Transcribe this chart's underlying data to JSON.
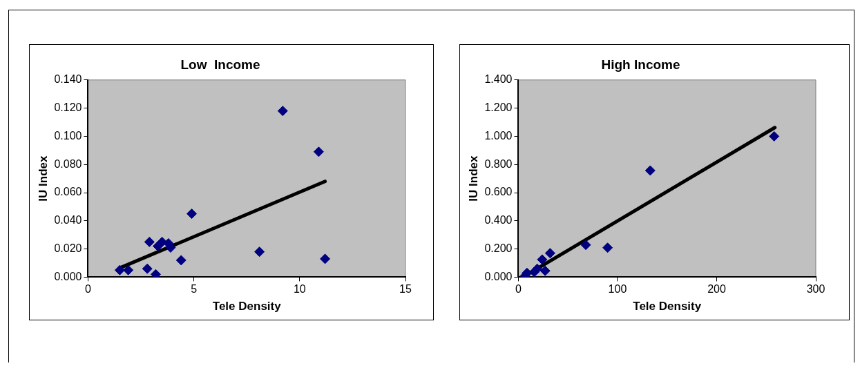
{
  "chart_data": [
    {
      "type": "scatter",
      "title": "Low  Income",
      "xlabel": "Tele Density",
      "ylabel": "IU Index",
      "xlim": [
        0,
        15
      ],
      "xticks": [
        0,
        5,
        10,
        15
      ],
      "ylim": [
        0,
        0.14
      ],
      "yticks": [
        {
          "value": 0,
          "label": "0.000"
        },
        {
          "value": 0.02,
          "label": "0.020"
        },
        {
          "value": 0.04,
          "label": "0.040"
        },
        {
          "value": 0.06,
          "label": "0.060"
        },
        {
          "value": 0.08,
          "label": "0.080"
        },
        {
          "value": 0.1,
          "label": "0.100"
        },
        {
          "value": 0.12,
          "label": "0.120"
        },
        {
          "value": 0.14,
          "label": "0.140"
        }
      ],
      "marker": "diamond",
      "grid": false,
      "legend": false,
      "series": [
        {
          "color": "#000080",
          "x": [
            1.5,
            1.9,
            2.8,
            2.9,
            3.2,
            3.3,
            3.5,
            3.8,
            3.9,
            4.4,
            4.9,
            8.1,
            9.2,
            10.9,
            11.2
          ],
          "values": [
            0.005,
            0.005,
            0.006,
            0.025,
            0.002,
            0.022,
            0.025,
            0.024,
            0.021,
            0.012,
            0.045,
            0.018,
            0.118,
            0.089,
            0.013
          ]
        },
        {
          "type": "line",
          "color": "#000000",
          "marker": "none",
          "x": [
            1.5,
            11.2
          ],
          "values": [
            0.0065,
            0.068
          ]
        }
      ]
    },
    {
      "type": "scatter",
      "title": "High Income",
      "xlabel": "Tele Density",
      "ylabel": "IU Index",
      "xlim": [
        0,
        300
      ],
      "xticks": [
        0,
        100,
        200,
        300
      ],
      "ylim": [
        0,
        1.4
      ],
      "yticks": [
        {
          "value": 0,
          "label": "0.000"
        },
        {
          "value": 0.2,
          "label": "0.200"
        },
        {
          "value": 0.4,
          "label": "0.400"
        },
        {
          "value": 0.6,
          "label": "0.600"
        },
        {
          "value": 0.8,
          "label": "0.800"
        },
        {
          "value": 1,
          "label": "1.000"
        },
        {
          "value": 1.2,
          "label": "1.200"
        },
        {
          "value": 1.4,
          "label": "1.400"
        }
      ],
      "marker": "diamond",
      "grid": false,
      "legend": false,
      "series": [
        {
          "color": "#000080",
          "x": [
            6.7,
            8.7,
            16,
            19,
            24,
            27,
            32,
            68,
            90,
            133,
            258
          ],
          "values": [
            0.009,
            0.03,
            0.036,
            0.059,
            0.125,
            0.045,
            0.17,
            0.229,
            0.209,
            0.757,
            1.0
          ]
        },
        {
          "type": "line",
          "color": "#000000",
          "marker": "none",
          "x": [
            6.7,
            258.7
          ],
          "values": [
            0.009,
            1.062
          ]
        }
      ]
    }
  ]
}
